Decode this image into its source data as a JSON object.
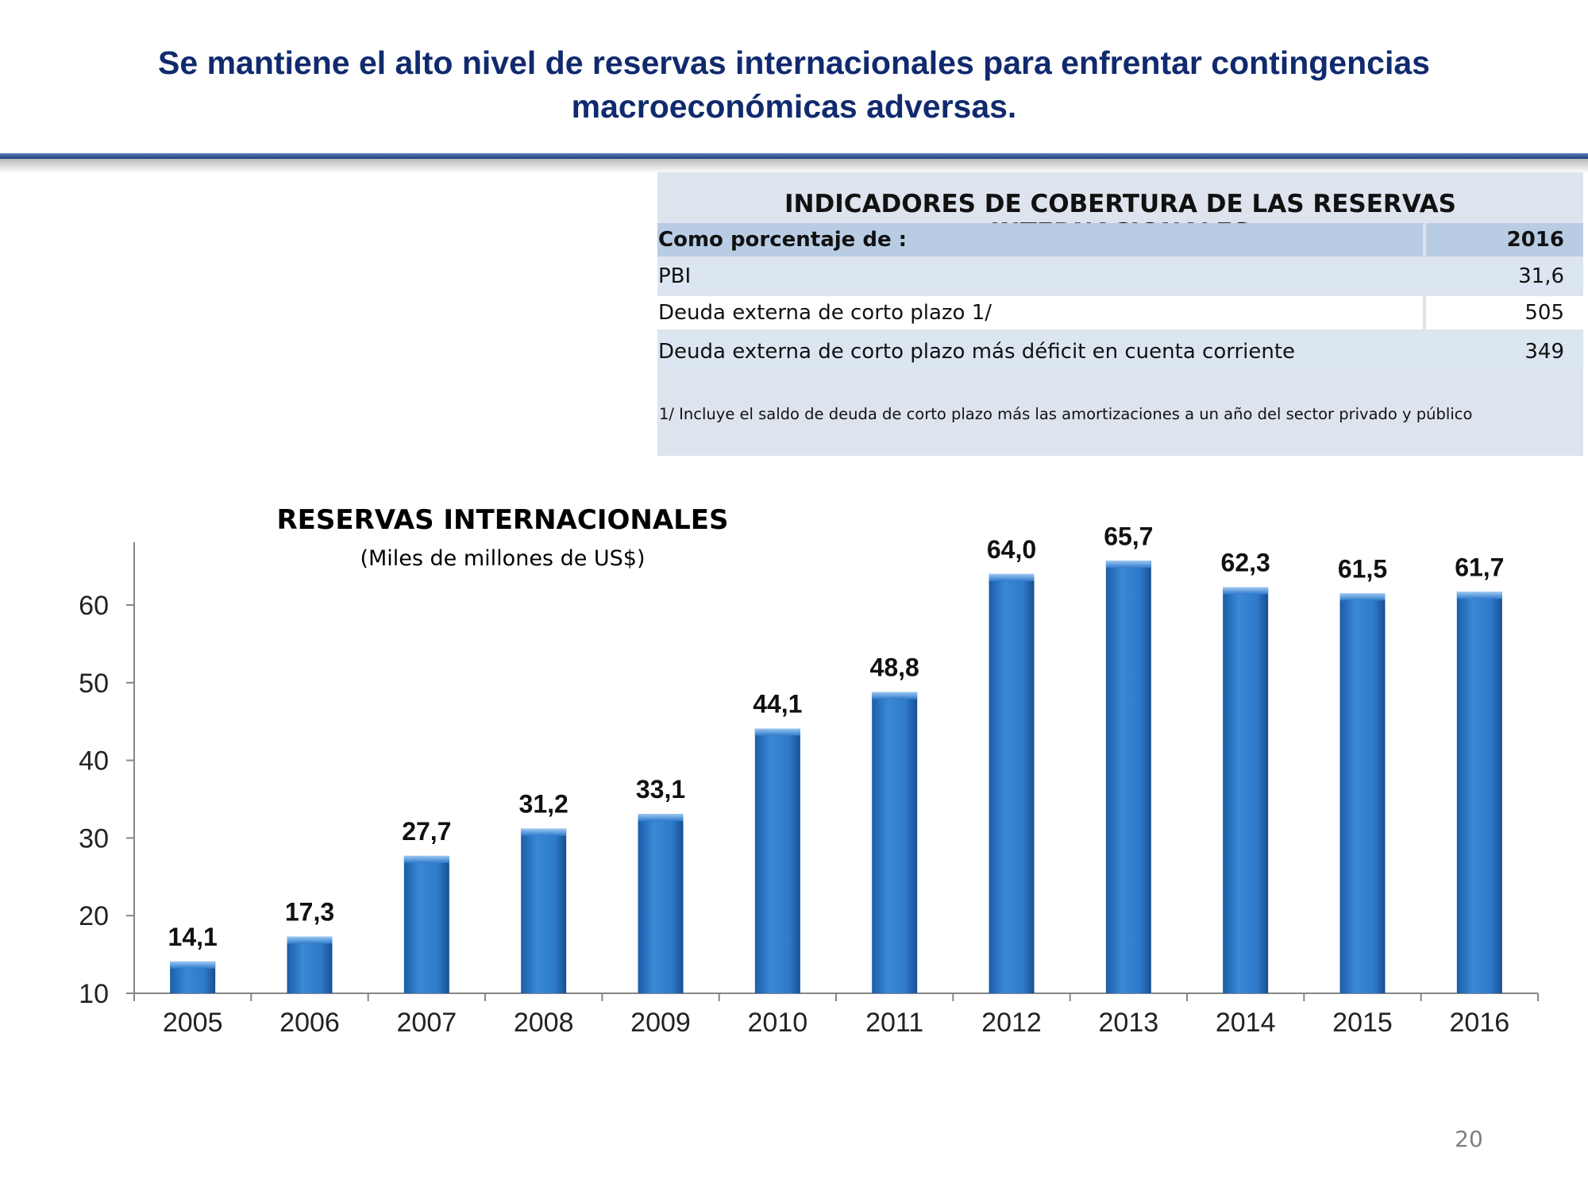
{
  "slide": {
    "title": "Se mantiene el alto nivel de reservas internacionales para enfrentar contingencias macroeconómicas adversas.",
    "page_number": "20"
  },
  "indicators": {
    "title": "INDICADORES DE COBERTURA DE LAS RESERVAS INTERNACIONALES",
    "header_label": "Como porcentaje de :",
    "header_year": "2016",
    "rows": [
      {
        "label": "PBI",
        "value": "31,6"
      },
      {
        "label": "Deuda externa de corto plazo 1/",
        "value": "505"
      },
      {
        "label": "Deuda externa de corto plazo más déficit en cuenta corriente",
        "value": "349"
      }
    ],
    "footnote": "1/ Incluye el saldo de deuda de corto plazo más las amortizaciones a un año del sector privado y público"
  },
  "chart_data": {
    "type": "bar",
    "title": "RESERVAS INTERNACIONALES",
    "subtitle": "(Miles de millones de US$)",
    "categories": [
      "2005",
      "2006",
      "2007",
      "2008",
      "2009",
      "2010",
      "2011",
      "2012",
      "2013",
      "2014",
      "2015",
      "2016"
    ],
    "values": [
      14.1,
      17.3,
      27.7,
      31.2,
      33.1,
      44.1,
      48.8,
      64.0,
      65.7,
      62.3,
      61.5,
      61.7
    ],
    "data_labels": [
      "14,1",
      "17,3",
      "27,7",
      "31,2",
      "33,1",
      "44,1",
      "48,8",
      "64,0",
      "65,7",
      "62,3",
      "61,5",
      "61,7"
    ],
    "y_ticks": [
      10,
      20,
      30,
      40,
      50,
      60
    ],
    "ylim": [
      10,
      68
    ],
    "grid": false,
    "bar_color": "#2e7bcc"
  }
}
